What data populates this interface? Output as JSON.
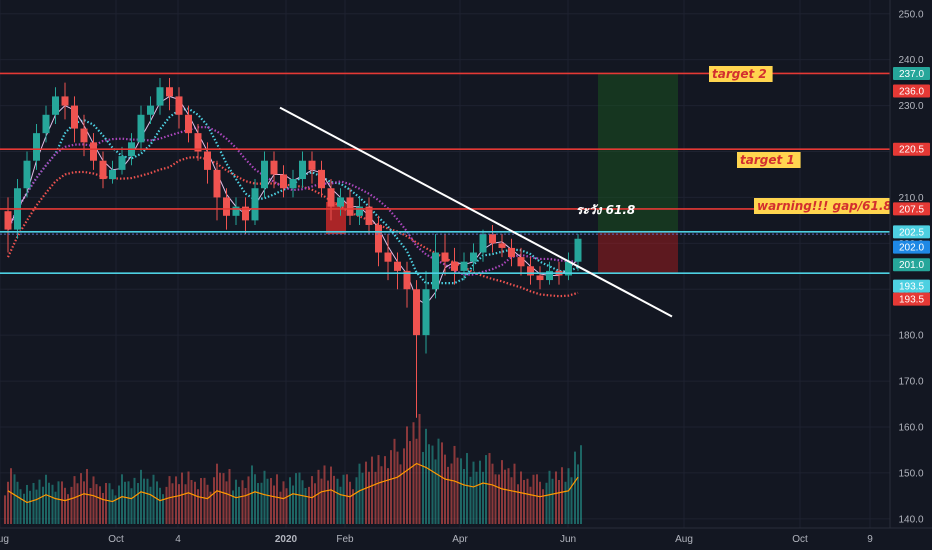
{
  "chart_data": {
    "type": "candlestick",
    "y_axis": {
      "range": [
        138,
        253
      ],
      "ticks": [
        140.0,
        150.0,
        160.0,
        170.0,
        180.0,
        190.0,
        200.0,
        210.0,
        220.0,
        230.0,
        240.0,
        250.0
      ],
      "tick_labels": [
        "140.0",
        "150.0",
        "160.0",
        "170.0",
        "180.0",
        "190.0",
        "200.0",
        "210.0",
        "220.0",
        "230.0",
        "240.0",
        "250.0"
      ],
      "position": "right"
    },
    "x_axis": {
      "tick_labels": [
        "Aug",
        "Oct",
        "4",
        "2020",
        "Feb",
        "Apr",
        "Jun",
        "Aug",
        "Oct",
        "9"
      ]
    },
    "horizontal_levels": [
      {
        "price": 237.0,
        "label": "237.0",
        "color": "#e53935",
        "tag_color": "#26a69a",
        "annotation": "target 2"
      },
      {
        "price": 236.0,
        "label": "236.0",
        "color": null,
        "tag_color": "#e53935",
        "annotation": ""
      },
      {
        "price": 220.5,
        "label": "220.5",
        "color": "#e53935",
        "tag_color": "#e53935",
        "annotation": "target 1"
      },
      {
        "price": 207.5,
        "label": "207.5",
        "color": "#e53935",
        "tag_color": "#e53935",
        "annotation": "warning!!! gap/61.8"
      },
      {
        "price": 202.5,
        "label": "202.5",
        "color": "#4dd0e1",
        "tag_color": "#4dd0e1",
        "annotation": ""
      },
      {
        "price": 202.0,
        "label": "202.0",
        "color": "#5c6bc0",
        "tag_color": "#1e88e5",
        "annotation": ""
      },
      {
        "price": 201.0,
        "label": "201.0",
        "color": null,
        "tag_color": "#26a69a",
        "annotation": ""
      },
      {
        "price": 193.5,
        "label": "193.5",
        "color": "#4dd0e1",
        "tag_color": "#4dd0e1",
        "annotation": ""
      },
      {
        "price": 193.5,
        "label": "193.5",
        "color": null,
        "tag_color": "#e53935",
        "annotation": ""
      }
    ],
    "thai_note": "ระวัง 61.8",
    "trendline": {
      "from": [
        16,
        230
      ],
      "to": [
        67,
        184.5
      ]
    },
    "volume_ma_color": "#ff9800",
    "moving_averages": [
      {
        "color": "#ef5350",
        "style": "dotted"
      },
      {
        "color": "#4dd0e1",
        "style": "dotted"
      },
      {
        "color": "#ab47bc",
        "style": "dotted"
      },
      {
        "color": "#e1bee7",
        "style": "solid"
      }
    ],
    "candles": [
      [
        207,
        203,
        210,
        198
      ],
      [
        203,
        212,
        214,
        201
      ],
      [
        212,
        218,
        220,
        210
      ],
      [
        218,
        224,
        226,
        216
      ],
      [
        224,
        228,
        230,
        222
      ],
      [
        228,
        232,
        234,
        226
      ],
      [
        232,
        230,
        235,
        227
      ],
      [
        230,
        225,
        232,
        222
      ],
      [
        225,
        222,
        228,
        219
      ],
      [
        222,
        218,
        224,
        216
      ],
      [
        218,
        214,
        220,
        212
      ],
      [
        214,
        216,
        218,
        213
      ],
      [
        216,
        219,
        221,
        215
      ],
      [
        219,
        222,
        224,
        217
      ],
      [
        222,
        228,
        230,
        220
      ],
      [
        228,
        230,
        232,
        226
      ],
      [
        230,
        234,
        236,
        228
      ],
      [
        234,
        232,
        236,
        229
      ],
      [
        232,
        228,
        234,
        225
      ],
      [
        228,
        224,
        230,
        222
      ],
      [
        224,
        220,
        226,
        218
      ],
      [
        220,
        216,
        222,
        213
      ],
      [
        216,
        210,
        218,
        205
      ],
      [
        210,
        206,
        212,
        203
      ],
      [
        206,
        208,
        210,
        204
      ],
      [
        208,
        205,
        210,
        202
      ],
      [
        205,
        212,
        214,
        204
      ],
      [
        212,
        218,
        220,
        210
      ],
      [
        218,
        215,
        220,
        212
      ],
      [
        215,
        212,
        217,
        210
      ],
      [
        212,
        214,
        216,
        210
      ],
      [
        214,
        218,
        220,
        212
      ],
      [
        218,
        216,
        220,
        213
      ],
      [
        216,
        212,
        218,
        210
      ],
      [
        212,
        208,
        214,
        205
      ],
      [
        208,
        210,
        212,
        206
      ],
      [
        210,
        206,
        212,
        204
      ],
      [
        206,
        208,
        210,
        204
      ],
      [
        208,
        204,
        210,
        202
      ],
      [
        204,
        198,
        206,
        195
      ],
      [
        198,
        196,
        202,
        192
      ],
      [
        196,
        194,
        198,
        190
      ],
      [
        194,
        190,
        196,
        186
      ],
      [
        190,
        180,
        192,
        162
      ],
      [
        180,
        190,
        194,
        176
      ],
      [
        190,
        198,
        202,
        188
      ],
      [
        198,
        196,
        202,
        193
      ],
      [
        196,
        194,
        199,
        191
      ],
      [
        194,
        196,
        198,
        192
      ],
      [
        196,
        198,
        200,
        194
      ],
      [
        198,
        202,
        203,
        196
      ],
      [
        202,
        200,
        204,
        198
      ],
      [
        200,
        199,
        202,
        197
      ],
      [
        199,
        197,
        201,
        195
      ],
      [
        197,
        195,
        199,
        193
      ],
      [
        195,
        193,
        197,
        191
      ],
      [
        193,
        192,
        195,
        190
      ],
      [
        192,
        194,
        196,
        191
      ],
      [
        194,
        193,
        196,
        191
      ],
      [
        193,
        196,
        198,
        192
      ],
      [
        196,
        201,
        202,
        194
      ]
    ],
    "volume": [
      34,
      28,
      22,
      25,
      30,
      26,
      24,
      27,
      31,
      29,
      25,
      23,
      28,
      26,
      33,
      30,
      24,
      27,
      29,
      32,
      28,
      26,
      34,
      31,
      27,
      29,
      33,
      30,
      28,
      26,
      31,
      29,
      27,
      33,
      35,
      30,
      28,
      34,
      38,
      42,
      45,
      48,
      55,
      62,
      58,
      52,
      46,
      44,
      40,
      38,
      42,
      40,
      36,
      34,
      32,
      30,
      28,
      30,
      32,
      34,
      48
    ],
    "annotations": [
      "target 2",
      "target 1",
      "warning!!! gap/61.8"
    ]
  }
}
